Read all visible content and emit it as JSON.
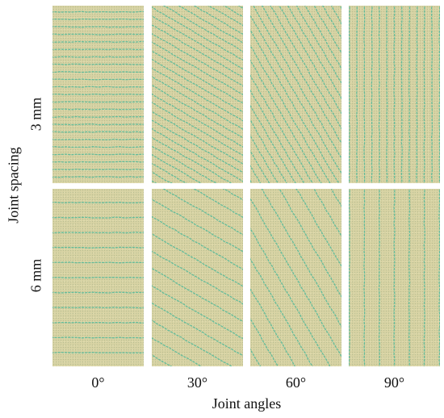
{
  "figure": {
    "row_axis_title": "Joint spacing",
    "col_axis_title": "Joint angles",
    "rows": [
      {
        "label": "3 mm",
        "spacing_mm": 3
      },
      {
        "label": "6 mm",
        "spacing_mm": 6
      }
    ],
    "columns": [
      {
        "label": "0°",
        "angle_deg": 0
      },
      {
        "label": "30°",
        "angle_deg": 30
      },
      {
        "label": "60°",
        "angle_deg": 60
      },
      {
        "label": "90°",
        "angle_deg": 90
      }
    ],
    "colors": {
      "matrix": "#d8d3a4",
      "joint": "#4fb89a",
      "background": "#ffffff"
    }
  }
}
